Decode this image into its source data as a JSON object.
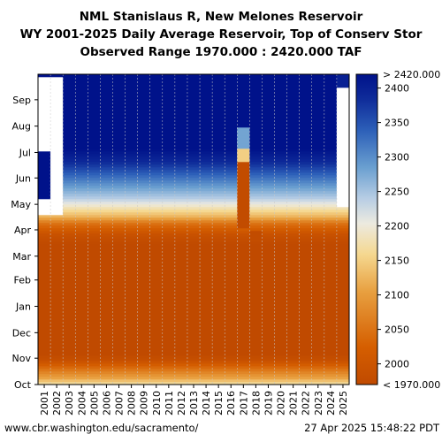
{
  "titles": {
    "line1": "NML Stanislaus R, New Melones Reservoir",
    "line2": "WY 2001-2025 Daily Average Reservoir, Top of Conserv Stor",
    "line3": "Observed Range 1970.000 : 2420.000 TAF"
  },
  "footer": {
    "url": "www.cbr.washington.edu/sacramento/",
    "timestamp": "27 Apr 2025 15:48:22 PDT"
  },
  "chart_data": {
    "type": "heatmap",
    "title": "NML Stanislaus R, New Melones Reservoir",
    "x_categories": [
      "2001",
      "2002",
      "2003",
      "2004",
      "2005",
      "2006",
      "2007",
      "2008",
      "2009",
      "2010",
      "2011",
      "2012",
      "2013",
      "2014",
      "2015",
      "2016",
      "2017",
      "2018",
      "2019",
      "2020",
      "2021",
      "2022",
      "2023",
      "2024",
      "2025"
    ],
    "y_ticks": [
      "Oct",
      "Nov",
      "Dec",
      "Jan",
      "Feb",
      "Mar",
      "Apr",
      "May",
      "Jun",
      "Jul",
      "Aug",
      "Sep"
    ],
    "y_axis_note": "Water-year months, Oct at bottom to Sep at top",
    "colorbar": {
      "min": 1970,
      "max": 2420,
      "tick_values": [
        2000,
        2050,
        2100,
        2150,
        2200,
        2250,
        2300,
        2350,
        2400
      ],
      "tick_labels": [
        "2000",
        "2050",
        "2100",
        "2150",
        "2200",
        "2250",
        "2300",
        "2350",
        "2400"
      ],
      "top_label": "> 2420.000",
      "bottom_label": "< 1970.000",
      "colors": [
        "#c04a00",
        "#d85f00",
        "#e08a28",
        "#f0c060",
        "#f5e6b4",
        "#e6e9ee",
        "#90b8dd",
        "#3070c0",
        "#1030a0",
        "#00148a"
      ]
    },
    "seasonal_profile_taf": {
      "months": [
        "Oct",
        "Nov",
        "Dec",
        "Jan",
        "Feb",
        "Mar",
        "Apr",
        "May",
        "Jun",
        "Jul",
        "Aug",
        "Sep"
      ],
      "typical_values": [
        2080,
        1970,
        1970,
        1970,
        1970,
        1970,
        1990,
        2200,
        2330,
        2420,
        2420,
        2400
      ]
    },
    "notes": "Years 2001-2002 mostly white (missing) with sparse data; 2017 shows dark-orange low storage band spanning Apr-Jul"
  }
}
